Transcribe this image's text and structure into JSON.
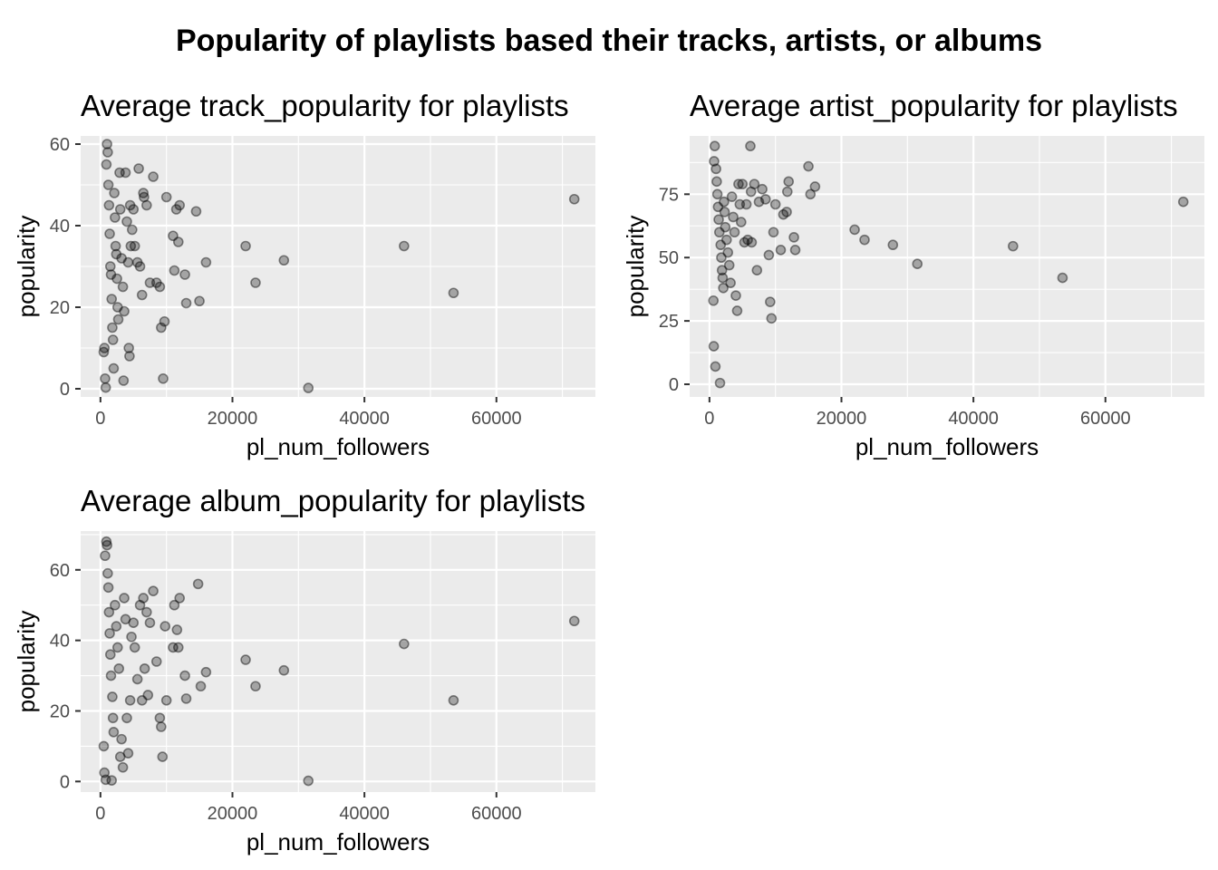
{
  "title": "Popularity of playlists based their tracks, artists, or albums",
  "chart_data": [
    {
      "type": "scatter",
      "title": "Average track_popularity for playlists",
      "xlabel": "pl_num_followers",
      "ylabel": "popularity",
      "xlim": [
        -3000,
        75000
      ],
      "ylim": [
        -2,
        62
      ],
      "xticks": [
        0,
        20000,
        40000,
        60000
      ],
      "yticks": [
        0,
        20,
        40,
        60
      ],
      "points": [
        [
          500,
          9
        ],
        [
          600,
          10
        ],
        [
          700,
          2.5
        ],
        [
          800,
          0.3
        ],
        [
          900,
          55
        ],
        [
          1000,
          60
        ],
        [
          1100,
          58
        ],
        [
          1200,
          50
        ],
        [
          1300,
          45
        ],
        [
          1400,
          38
        ],
        [
          1500,
          30
        ],
        [
          1600,
          28
        ],
        [
          1700,
          22
        ],
        [
          1800,
          15
        ],
        [
          1900,
          12
        ],
        [
          2000,
          5
        ],
        [
          2100,
          48
        ],
        [
          2200,
          42
        ],
        [
          2300,
          35
        ],
        [
          2400,
          33
        ],
        [
          2500,
          27
        ],
        [
          2600,
          20
        ],
        [
          2700,
          17
        ],
        [
          2900,
          53
        ],
        [
          3000,
          44
        ],
        [
          3200,
          32
        ],
        [
          3400,
          25
        ],
        [
          3500,
          2
        ],
        [
          3600,
          19
        ],
        [
          3800,
          53
        ],
        [
          4000,
          41
        ],
        [
          4200,
          31
        ],
        [
          4300,
          10
        ],
        [
          4400,
          8
        ],
        [
          4500,
          45
        ],
        [
          4600,
          35
        ],
        [
          4800,
          39
        ],
        [
          5000,
          44
        ],
        [
          5200,
          35
        ],
        [
          5600,
          31
        ],
        [
          5800,
          54
        ],
        [
          6000,
          30
        ],
        [
          6300,
          23
        ],
        [
          6500,
          48
        ],
        [
          6600,
          47
        ],
        [
          7000,
          45
        ],
        [
          7500,
          26
        ],
        [
          8000,
          52
        ],
        [
          8500,
          26
        ],
        [
          9000,
          25
        ],
        [
          9200,
          15
        ],
        [
          9500,
          2.5
        ],
        [
          9700,
          16.5
        ],
        [
          10000,
          47
        ],
        [
          11000,
          37.5
        ],
        [
          11200,
          29
        ],
        [
          11500,
          44
        ],
        [
          11800,
          36
        ],
        [
          12000,
          45
        ],
        [
          12800,
          28
        ],
        [
          13000,
          21
        ],
        [
          14500,
          43.5
        ],
        [
          15000,
          21.5
        ],
        [
          16000,
          31
        ],
        [
          22000,
          35
        ],
        [
          23500,
          26
        ],
        [
          27800,
          31.5
        ],
        [
          31500,
          0.2
        ],
        [
          46000,
          35
        ],
        [
          53500,
          23.5
        ],
        [
          71800,
          46.5
        ]
      ]
    },
    {
      "type": "scatter",
      "title": "Average artist_popularity for playlists",
      "xlabel": "pl_num_followers",
      "ylabel": "popularity",
      "xlim": [
        -3000,
        75000
      ],
      "ylim": [
        -5,
        98
      ],
      "xticks": [
        0,
        20000,
        40000,
        60000
      ],
      "yticks": [
        0,
        25,
        50,
        75
      ],
      "points": [
        [
          600,
          33
        ],
        [
          650,
          15
        ],
        [
          700,
          88
        ],
        [
          800,
          94
        ],
        [
          900,
          7
        ],
        [
          1000,
          85
        ],
        [
          1100,
          80
        ],
        [
          1200,
          75
        ],
        [
          1300,
          70
        ],
        [
          1400,
          65
        ],
        [
          1500,
          60
        ],
        [
          1600,
          0.5
        ],
        [
          1700,
          55
        ],
        [
          1800,
          50
        ],
        [
          1900,
          45
        ],
        [
          2000,
          42
        ],
        [
          2100,
          38
        ],
        [
          2200,
          72
        ],
        [
          2300,
          68
        ],
        [
          2400,
          62
        ],
        [
          2600,
          57
        ],
        [
          2800,
          52
        ],
        [
          3000,
          47
        ],
        [
          3200,
          40
        ],
        [
          3400,
          74
        ],
        [
          3600,
          66
        ],
        [
          3800,
          60
        ],
        [
          4000,
          35
        ],
        [
          4200,
          29
        ],
        [
          4400,
          79
        ],
        [
          4600,
          71
        ],
        [
          4800,
          64
        ],
        [
          5000,
          79
        ],
        [
          5300,
          56
        ],
        [
          5600,
          71
        ],
        [
          5800,
          57
        ],
        [
          6200,
          94
        ],
        [
          6300,
          76
        ],
        [
          6400,
          56
        ],
        [
          6800,
          79
        ],
        [
          7200,
          45
        ],
        [
          7500,
          72
        ],
        [
          8000,
          77
        ],
        [
          8500,
          73
        ],
        [
          9000,
          51
        ],
        [
          9200,
          32.5
        ],
        [
          9400,
          26
        ],
        [
          9700,
          60
        ],
        [
          10000,
          71
        ],
        [
          10800,
          53
        ],
        [
          11200,
          67
        ],
        [
          11700,
          68
        ],
        [
          11800,
          76
        ],
        [
          12000,
          80
        ],
        [
          12800,
          58
        ],
        [
          13000,
          53
        ],
        [
          15000,
          86
        ],
        [
          15300,
          75
        ],
        [
          16000,
          78
        ],
        [
          22000,
          61
        ],
        [
          23500,
          57
        ],
        [
          27800,
          55
        ],
        [
          31500,
          47.5
        ],
        [
          46000,
          54.5
        ],
        [
          53500,
          42
        ],
        [
          71800,
          72
        ]
      ]
    },
    {
      "type": "scatter",
      "title": "Average album_popularity for playlists",
      "xlabel": "pl_num_followers",
      "ylabel": "popularity",
      "xlim": [
        -3000,
        75000
      ],
      "ylim": [
        -3,
        71
      ],
      "xticks": [
        0,
        20000,
        40000,
        60000
      ],
      "yticks": [
        0,
        20,
        40,
        60
      ],
      "points": [
        [
          500,
          10
        ],
        [
          600,
          2.5
        ],
        [
          700,
          64
        ],
        [
          800,
          0.5
        ],
        [
          900,
          68
        ],
        [
          1000,
          67
        ],
        [
          1100,
          59
        ],
        [
          1200,
          55
        ],
        [
          1300,
          48
        ],
        [
          1400,
          42
        ],
        [
          1500,
          36
        ],
        [
          1600,
          30
        ],
        [
          1700,
          0.3
        ],
        [
          1800,
          24
        ],
        [
          1900,
          18
        ],
        [
          2000,
          14
        ],
        [
          2200,
          50
        ],
        [
          2400,
          44
        ],
        [
          2600,
          38
        ],
        [
          2800,
          32
        ],
        [
          3000,
          7
        ],
        [
          3200,
          12
        ],
        [
          3400,
          4
        ],
        [
          3600,
          52
        ],
        [
          3800,
          46
        ],
        [
          4000,
          18
        ],
        [
          4200,
          8
        ],
        [
          4500,
          23
        ],
        [
          4700,
          41
        ],
        [
          5000,
          45
        ],
        [
          5200,
          38
        ],
        [
          5600,
          29
        ],
        [
          6000,
          50
        ],
        [
          6300,
          23
        ],
        [
          6500,
          52
        ],
        [
          6700,
          32
        ],
        [
          7000,
          48
        ],
        [
          7200,
          24.5
        ],
        [
          7500,
          45
        ],
        [
          8000,
          54
        ],
        [
          8500,
          34
        ],
        [
          9000,
          18
        ],
        [
          9200,
          15.5
        ],
        [
          9400,
          7
        ],
        [
          9800,
          44
        ],
        [
          10000,
          23
        ],
        [
          11000,
          38
        ],
        [
          11200,
          50
        ],
        [
          11600,
          43
        ],
        [
          11800,
          38
        ],
        [
          12000,
          52
        ],
        [
          12800,
          30
        ],
        [
          13000,
          23.5
        ],
        [
          14800,
          56
        ],
        [
          15200,
          27
        ],
        [
          16000,
          31
        ],
        [
          22000,
          34.5
        ],
        [
          23500,
          27
        ],
        [
          27800,
          31.5
        ],
        [
          31500,
          0.2
        ],
        [
          46000,
          39
        ],
        [
          53500,
          23
        ],
        [
          71800,
          45.5
        ]
      ]
    }
  ]
}
